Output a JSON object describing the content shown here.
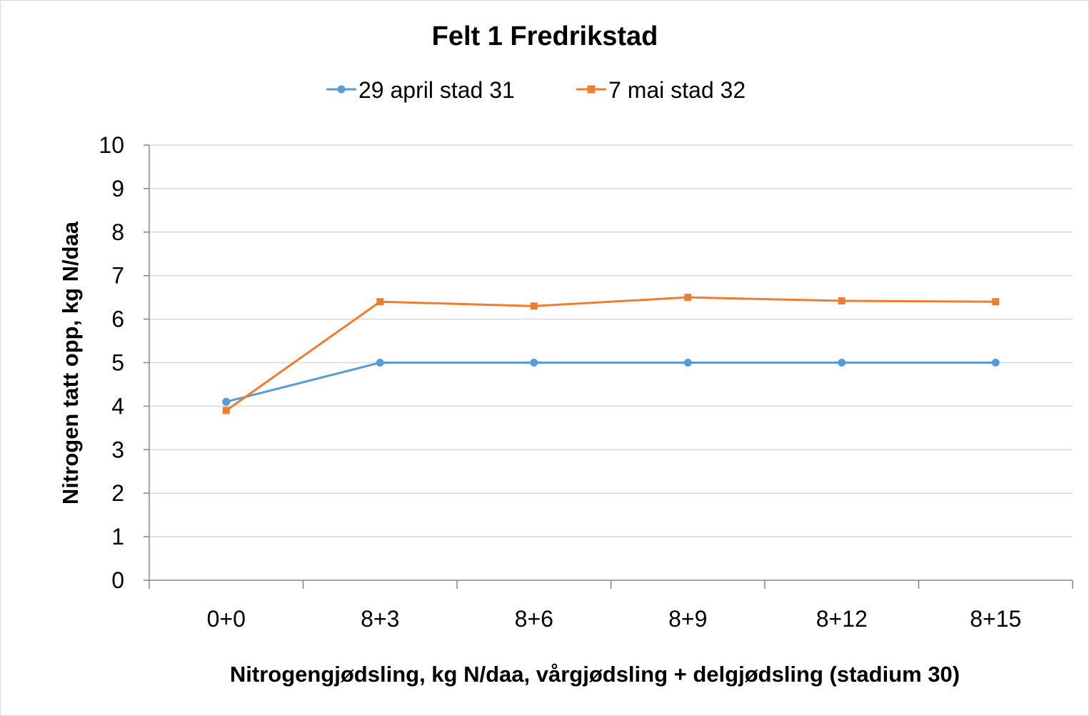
{
  "chart_data": {
    "type": "line",
    "title": "Felt 1 Fredrikstad",
    "xlabel": "Nitrogengjødsling, kg N/daa, vårgjødsling + delgjødsling (stadium 30)",
    "ylabel": "Nitrogen tatt opp, kg N/daa",
    "categories": [
      "0+0",
      "8+3",
      "8+6",
      "8+9",
      "8+12",
      "8+15"
    ],
    "ylim": [
      0,
      10
    ],
    "yticks": [
      "0",
      "1",
      "2",
      "3",
      "4",
      "5",
      "6",
      "7",
      "8",
      "9",
      "10"
    ],
    "grid": true,
    "legend_position": "top",
    "series": [
      {
        "name": "29 april stad 31",
        "values": [
          4.1,
          5.0,
          5.0,
          5.0,
          5.0,
          5.0
        ],
        "color": "#5b9bd5",
        "marker": "circle"
      },
      {
        "name": "7 mai stad 32",
        "values": [
          3.9,
          6.4,
          6.3,
          6.5,
          6.42,
          6.4
        ],
        "color": "#ed7d31",
        "marker": "square"
      }
    ]
  }
}
